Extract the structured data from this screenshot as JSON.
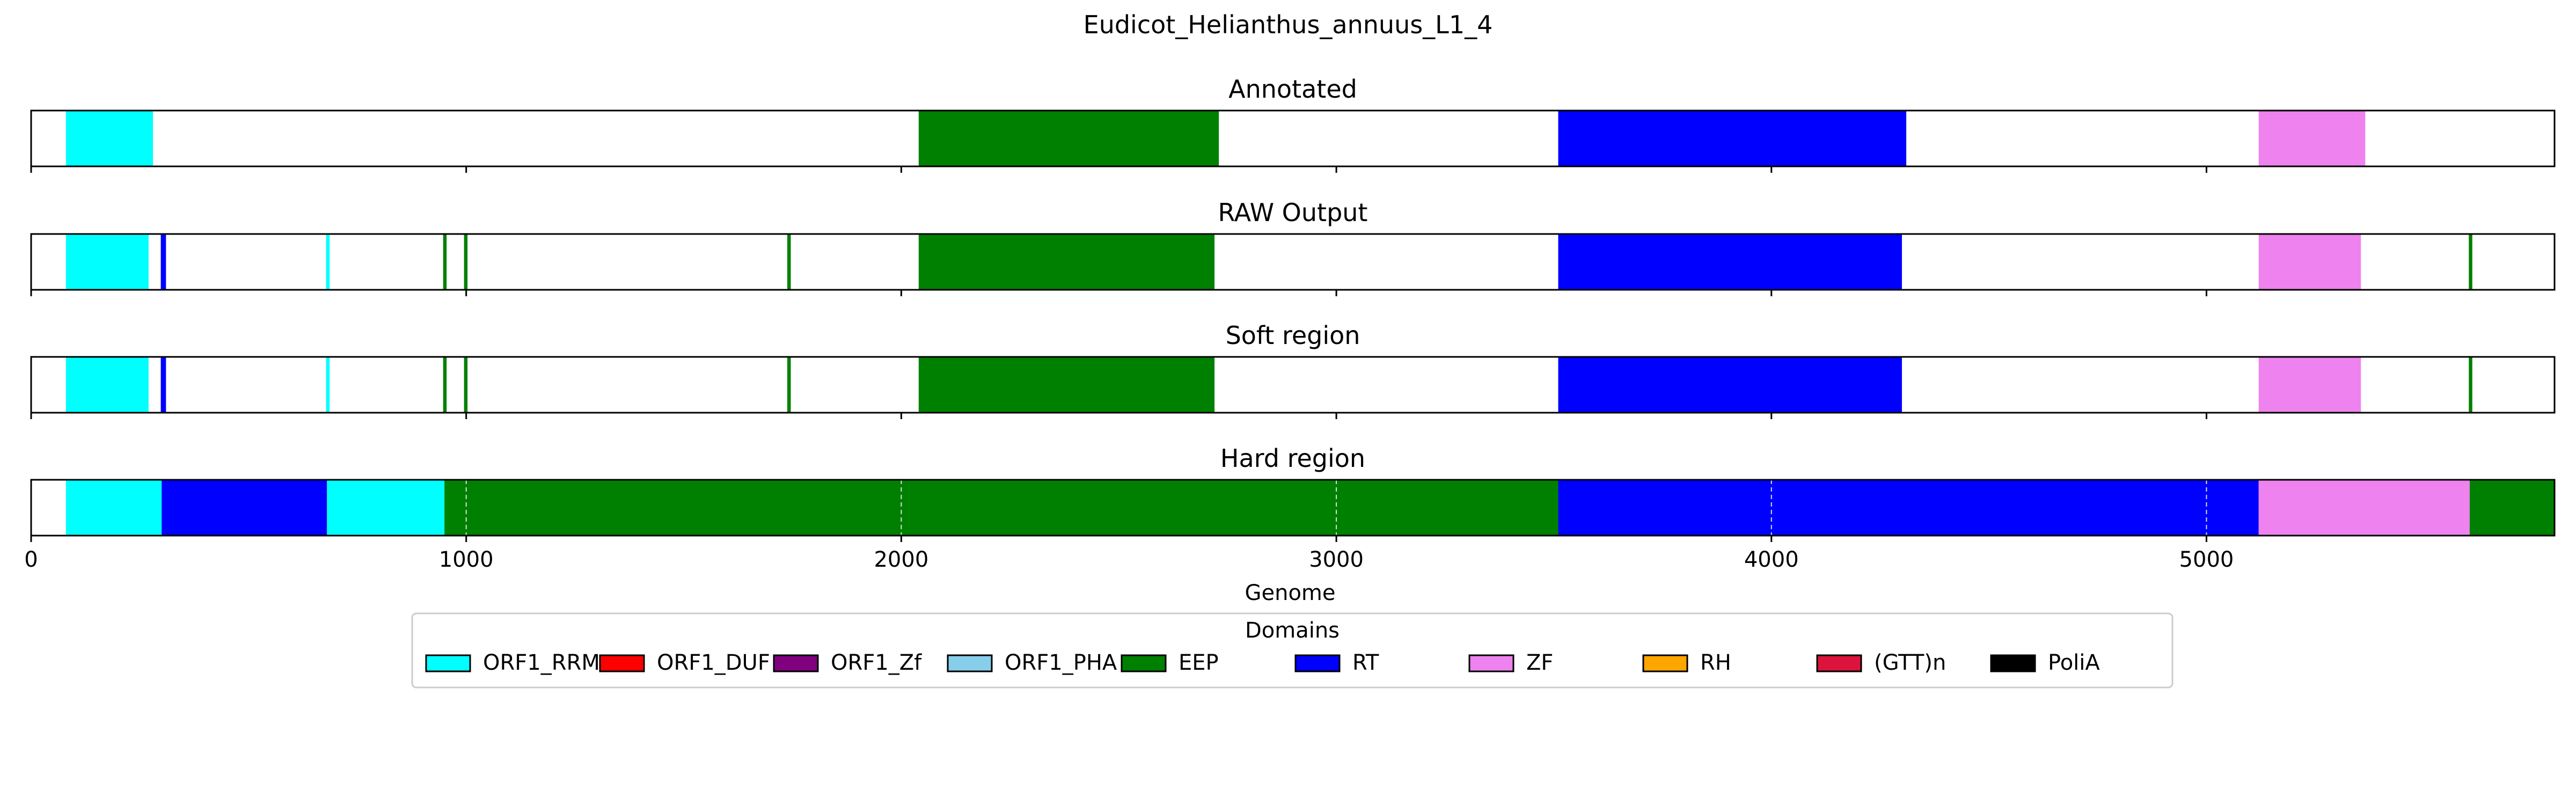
{
  "figure": {
    "title": "Eudicot_Helianthus_annuus_L1_4"
  },
  "chart_data": {
    "type": "bar",
    "title": "Eudicot_Helianthus_annuus_L1_4",
    "xlabel": "Genome",
    "xlim": [
      0,
      5800
    ],
    "xticks": [
      "0",
      "1000",
      "2000",
      "3000",
      "4000",
      "5000"
    ],
    "xtick_values": [
      0,
      1000,
      2000,
      3000,
      4000,
      5000
    ],
    "panels": [
      {
        "title": "Annotated",
        "segments": [
          {
            "domain": "ORF1_RRM",
            "start": 80,
            "end": 280
          },
          {
            "domain": "EEP",
            "start": 2040,
            "end": 2730
          },
          {
            "domain": "RT",
            "start": 3510,
            "end": 4310
          },
          {
            "domain": "ZF",
            "start": 5120,
            "end": 5365
          }
        ]
      },
      {
        "title": "RAW Output",
        "segments": [
          {
            "domain": "ORF1_RRM",
            "start": 80,
            "end": 270
          },
          {
            "domain": "RT",
            "start": 298,
            "end": 310
          },
          {
            "domain": "ORF1_RRM",
            "start": 678,
            "end": 686
          },
          {
            "domain": "EEP",
            "start": 947,
            "end": 955
          },
          {
            "domain": "EEP",
            "start": 995,
            "end": 1003
          },
          {
            "domain": "EEP",
            "start": 1738,
            "end": 1746
          },
          {
            "domain": "EEP",
            "start": 2040,
            "end": 2720
          },
          {
            "domain": "RT",
            "start": 3510,
            "end": 4300
          },
          {
            "domain": "ZF",
            "start": 5120,
            "end": 5355
          },
          {
            "domain": "EEP",
            "start": 5603,
            "end": 5611
          }
        ]
      },
      {
        "title": "Soft region",
        "segments": [
          {
            "domain": "ORF1_RRM",
            "start": 80,
            "end": 270
          },
          {
            "domain": "RT",
            "start": 298,
            "end": 310
          },
          {
            "domain": "ORF1_RRM",
            "start": 678,
            "end": 686
          },
          {
            "domain": "EEP",
            "start": 947,
            "end": 955
          },
          {
            "domain": "EEP",
            "start": 995,
            "end": 1003
          },
          {
            "domain": "EEP",
            "start": 1738,
            "end": 1746
          },
          {
            "domain": "EEP",
            "start": 2040,
            "end": 2720
          },
          {
            "domain": "RT",
            "start": 3510,
            "end": 4300
          },
          {
            "domain": "ZF",
            "start": 5120,
            "end": 5355
          },
          {
            "domain": "EEP",
            "start": 5603,
            "end": 5611
          }
        ]
      },
      {
        "title": "Hard region",
        "show_xticks": true,
        "grid": true,
        "segments": [
          {
            "domain": "ORF1_RRM",
            "start": 80,
            "end": 300
          },
          {
            "domain": "RT",
            "start": 300,
            "end": 680
          },
          {
            "domain": "ORF1_RRM",
            "start": 680,
            "end": 950
          },
          {
            "domain": "EEP",
            "start": 950,
            "end": 3510
          },
          {
            "domain": "RT",
            "start": 3510,
            "end": 5120
          },
          {
            "domain": "ZF",
            "start": 5120,
            "end": 5605
          },
          {
            "domain": "EEP",
            "start": 5605,
            "end": 5800
          }
        ]
      }
    ],
    "legend": {
      "title": "Domains",
      "placement": "bottom-center",
      "items": [
        {
          "label": "ORF1_RRM",
          "color": "#00ffff"
        },
        {
          "label": "ORF1_DUF",
          "color": "#ff0000"
        },
        {
          "label": "ORF1_Zf",
          "color": "#800080"
        },
        {
          "label": "ORF1_PHA",
          "color": "#87ceeb"
        },
        {
          "label": "EEP",
          "color": "#008000"
        },
        {
          "label": "RT",
          "color": "#0000ff"
        },
        {
          "label": "ZF",
          "color": "#ee82ee"
        },
        {
          "label": "RH",
          "color": "#ffa500"
        },
        {
          "label": "(GTT)n",
          "color": "#dc143c"
        },
        {
          "label": "PoliA",
          "color": "#000000"
        }
      ]
    }
  }
}
